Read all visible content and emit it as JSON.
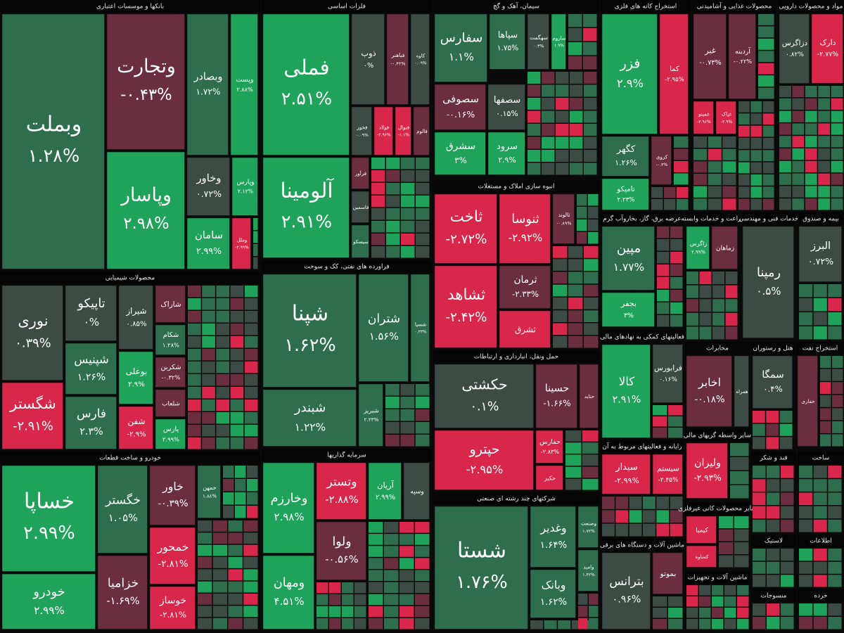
{
  "sectors": [
    {
      "title": "بانکها و موسسات اعتباری",
      "tiles": [
        {
          "name": "وبملت",
          "change": "۱.۲۸%",
          "color": "#2e6e4e"
        },
        {
          "name": "وتجارت",
          "change": "-۰.۴۳%",
          "color": "#6a2e3e"
        },
        {
          "name": "وپاسار",
          "change": "۲.۹۸%",
          "color": "#1fa35a"
        },
        {
          "name": "وبصادر",
          "change": "۱.۷۲%",
          "color": "#2e6e4e"
        },
        {
          "name": "وپست",
          "change": "۲.۸۸%",
          "color": "#1fa35a"
        },
        {
          "name": "وخاور",
          "change": "۰.۷۲%",
          "color": "#3d4b45"
        },
        {
          "name": "وپارس",
          "change": "۲.۱۲%",
          "color": "#1fa35a"
        },
        {
          "name": "سامان",
          "change": "۲.۹۹%",
          "color": "#1fa35a"
        },
        {
          "name": "وملل",
          "change": "-۲.۹۹%",
          "color": "#d9274b"
        }
      ]
    },
    {
      "title": "فلزات اساسی",
      "tiles": [
        {
          "name": "فملی",
          "change": "۲.۵۱%",
          "color": "#1fa35a"
        },
        {
          "name": "آلومینا",
          "change": "۲.۹۱%",
          "color": "#1fa35a"
        },
        {
          "name": "ذوب",
          "change": "۰%",
          "color": "#3d4b45"
        },
        {
          "name": "فباهنر",
          "change": "-۰.۴۲%",
          "color": "#6a2e3e"
        },
        {
          "name": "کاوه",
          "change": "۰.۰۹%",
          "color": "#3d4b45"
        },
        {
          "name": "فخوز",
          "change": "۰.۰۹%",
          "color": "#3d4b45"
        },
        {
          "name": "فولاد",
          "change": "-۲.۹۶%",
          "color": "#d9274b"
        },
        {
          "name": "فنوال",
          "change": "-۱.۱%",
          "color": "#d9274b"
        },
        {
          "name": "فالوم",
          "color": "#6a2e3e"
        },
        {
          "name": "فرآور",
          "color": "#6a2e3e"
        },
        {
          "name": "فاسمین",
          "color": "#3d4b45"
        },
        {
          "name": "سیسکو",
          "color": "#2e6e4e"
        }
      ]
    },
    {
      "title": "سیمان، آهک و گچ",
      "tiles": [
        {
          "name": "سفارس",
          "change": "۱.۱%",
          "color": "#2e6e4e"
        },
        {
          "name": "سپاها",
          "change": "۱.۷۵%",
          "color": "#2e6e4e"
        },
        {
          "name": "سهگمت",
          "change": "۰.۳%",
          "color": "#3d4b45"
        },
        {
          "name": "ساروم",
          "change": "۱.۹%",
          "color": "#1fa35a"
        },
        {
          "name": "سصوفی",
          "change": "-۰.۱۶%",
          "color": "#6a2e3e"
        },
        {
          "name": "سصفها",
          "change": "۰.۱۵%",
          "color": "#3d4b45"
        },
        {
          "name": "سشرق",
          "change": "۳%",
          "color": "#1fa35a"
        },
        {
          "name": "سرود",
          "change": "۲.۹%",
          "color": "#1fa35a"
        }
      ]
    },
    {
      "title": "استخراج کانه های فلزی",
      "tiles": [
        {
          "name": "فزر",
          "change": "۲.۹%",
          "color": "#1fa35a"
        },
        {
          "name": "کما",
          "change": "-۲.۹۵%",
          "color": "#d9274b"
        },
        {
          "name": "کگهر",
          "change": "۱.۲۶%",
          "color": "#2e6e4e"
        },
        {
          "name": "تامیکو",
          "change": "۲.۲۳%",
          "color": "#1fa35a"
        },
        {
          "name": "کروی",
          "change": "-۰.۳%",
          "color": "#6a2e3e"
        }
      ]
    },
    {
      "title": "محصولات غذایی و آشامیدنی",
      "tiles": [
        {
          "name": "غبر",
          "change": "-۰.۷۳%",
          "color": "#6a2e3e"
        },
        {
          "name": "آردینه",
          "change": "-۰.۲۲%",
          "color": "#6a2e3e"
        },
        {
          "name": "غمینو",
          "change": "-۲.۹۶%",
          "color": "#d9274b"
        },
        {
          "name": "غپاک",
          "change": "-۲.۹%",
          "color": "#d9274b"
        }
      ]
    },
    {
      "title": "مواد و محصولات دارویی",
      "tiles": [
        {
          "name": "دزاگرس",
          "change": "۰.۸۲%",
          "color": "#3d4b45"
        },
        {
          "name": "دارک",
          "change": "-۲.۷۷%",
          "color": "#d9274b"
        }
      ]
    },
    {
      "title": "انبوه سازی املاک و مستغلات",
      "tiles": [
        {
          "name": "ثاخت",
          "change": "-۲.۷۲%",
          "color": "#d9274b"
        },
        {
          "name": "ثنوسا",
          "change": "-۲.۹۲%",
          "color": "#d9274b"
        },
        {
          "name": "ثشاهد",
          "change": "-۲.۴۲%",
          "color": "#d9274b"
        },
        {
          "name": "ثرمان",
          "change": "-۲.۳۳%",
          "color": "#6a2e3e"
        },
        {
          "name": "ثشرق",
          "color": "#d9274b"
        },
        {
          "name": "ثالوند",
          "change": "-۰.۸۹%",
          "color": "#6a2e3e"
        }
      ]
    },
    {
      "title": "محصولات شیمیایی",
      "tiles": [
        {
          "name": "نوری",
          "change": "۰.۳۹%",
          "color": "#3d4b45"
        },
        {
          "name": "شگستر",
          "change": "-۲.۹۱%",
          "color": "#d9274b"
        },
        {
          "name": "تاپیکو",
          "change": "۰%",
          "color": "#3d4b45"
        },
        {
          "name": "شپنیس",
          "change": "۱.۲۶%",
          "color": "#2e6e4e"
        },
        {
          "name": "فارس",
          "change": "۲.۳%",
          "color": "#2e6e4e"
        },
        {
          "name": "شیراز",
          "change": "۰.۸۵%",
          "color": "#3d4b45"
        },
        {
          "name": "بوعلی",
          "change": "۲.۹%",
          "color": "#1fa35a"
        },
        {
          "name": "شفن",
          "change": "-۲.۹%",
          "color": "#d9274b"
        },
        {
          "name": "شاراک",
          "color": "#6a2e3e"
        },
        {
          "name": "شکام",
          "change": "۱.۲۸%",
          "color": "#2e6e4e"
        },
        {
          "name": "شکربن",
          "change": "-۰.۳۲%",
          "color": "#6a2e3e"
        },
        {
          "name": "شلعاب",
          "color": "#6a2e3e"
        },
        {
          "name": "پارس",
          "change": "۲.۹۹%",
          "color": "#1fa35a"
        }
      ]
    },
    {
      "title": "فراورده های نفتی، کک و سوخت",
      "tiles": [
        {
          "name": "شپنا",
          "change": "۱.۶۲%",
          "color": "#2e6e4e"
        },
        {
          "name": "شتران",
          "change": "۱.۵۶%",
          "color": "#2e6e4e"
        },
        {
          "name": "شبندر",
          "change": "۱.۲۲%",
          "color": "#2e6e4e"
        },
        {
          "name": "شبریز",
          "change": "۲.۲۳%",
          "color": "#2e6e4e"
        },
        {
          "name": "شسپا",
          "change": "۰.۳۳%",
          "color": "#2e6e4e"
        }
      ]
    },
    {
      "title": "حمل ونقل، انبارداری و ارتباطات",
      "tiles": [
        {
          "name": "حکشتی",
          "change": "۰.۱%",
          "color": "#3d4b45"
        },
        {
          "name": "حسینا",
          "change": "-۱.۶۶%",
          "color": "#6a2e3e"
        },
        {
          "name": "حپترو",
          "change": "-۲.۹۵%",
          "color": "#d9274b"
        },
        {
          "name": "حفارس",
          "change": "-۲.۸۳%",
          "color": "#d9274b"
        },
        {
          "name": "حکیر",
          "color": "#d9274b"
        },
        {
          "name": "حتاید",
          "color": "#6a2e3e"
        }
      ]
    },
    {
      "title": "سرمایه گذاریها",
      "tiles": [
        {
          "name": "وخارزم",
          "change": "۲.۹۸%",
          "color": "#1fa35a"
        },
        {
          "name": "وتستر",
          "change": "-۲.۸۸%",
          "color": "#d9274b"
        },
        {
          "name": "آریان",
          "change": "۲.۹۹%",
          "color": "#1fa35a"
        },
        {
          "name": "ومهان",
          "change": "۴.۵۱%",
          "color": "#1fa35a"
        },
        {
          "name": "ولوا",
          "change": "-۰.۵۶%",
          "color": "#6a2e3e"
        },
        {
          "name": "وسپه",
          "color": "#3d4b45"
        }
      ]
    },
    {
      "title": "خودرو و ساخت قطعات",
      "tiles": [
        {
          "name": "خساپا",
          "change": "۲.۹۹%",
          "color": "#1fa35a"
        },
        {
          "name": "خودرو",
          "change": "۲.۹۹%",
          "color": "#1fa35a"
        },
        {
          "name": "خگستر",
          "change": "۱.۰۵%",
          "color": "#2e6e4e"
        },
        {
          "name": "خزامیا",
          "change": "-۱.۶۹%",
          "color": "#6a2e3e"
        },
        {
          "name": "خاور",
          "change": "-۰.۳۹%",
          "color": "#6a2e3e"
        },
        {
          "name": "خمحور",
          "change": "-۲.۸۱%",
          "color": "#d9274b"
        },
        {
          "name": "خوساز",
          "change": "-۲.۸۱%",
          "color": "#d9274b"
        },
        {
          "name": "خمهن",
          "change": "۱.۸۸%",
          "color": "#2e6e4e"
        }
      ]
    },
    {
      "title": "شرکتهای چند رشته ای صنعتی",
      "tiles": [
        {
          "name": "شستا",
          "change": "۱.۷۶%",
          "color": "#2e6e4e"
        },
        {
          "name": "وغدیر",
          "change": "۱.۶۴%",
          "color": "#2e6e4e"
        },
        {
          "name": "وبانک",
          "change": "۱.۶۲%",
          "color": "#2e6e4e"
        },
        {
          "name": "وصنعت",
          "change": "۱.۷۲%",
          "color": "#2e6e4e"
        },
        {
          "name": "وامید",
          "change": "۱.۴۲%",
          "color": "#2e6e4e"
        }
      ]
    },
    {
      "title": "عرضه برق، گاز، بخاروآب گرم",
      "tiles": [
        {
          "name": "مپین",
          "change": "۱.۷۷%",
          "color": "#2e6e4e"
        },
        {
          "name": "بجفر",
          "change": "۳%",
          "color": "#1fa35a"
        }
      ]
    },
    {
      "title": "زراعت و خدمات وابسته",
      "tiles": [
        {
          "name": "زاگرس",
          "change": "۲.۹۹%",
          "color": "#1fa35a"
        },
        {
          "name": "زماهان",
          "color": "#6a2e3e"
        }
      ]
    },
    {
      "title": "خدمات فنی و مهندسی",
      "tiles": [
        {
          "name": "رمپنا",
          "change": "۰.۵%",
          "color": "#3d4b45"
        }
      ]
    },
    {
      "title": "بیمه و صندوق",
      "tiles": [
        {
          "name": "البرز",
          "change": "۰.۷۲%",
          "color": "#3d4b45"
        }
      ]
    },
    {
      "title": "فعالیتهای کمکی به نهادهای مالی",
      "tiles": [
        {
          "name": "کالا",
          "change": "۲.۹۱%",
          "color": "#1fa35a"
        },
        {
          "name": "فرابورس",
          "change": "۰.۱۶%",
          "color": "#3d4b45"
        }
      ]
    },
    {
      "title": "مخابرات",
      "tiles": [
        {
          "name": "اخابر",
          "change": "-۰.۱۸%",
          "color": "#6a2e3e"
        },
        {
          "name": "همراه",
          "color": "#3d4b45"
        }
      ]
    },
    {
      "title": "هتل و رستوران",
      "tiles": [
        {
          "name": "سمگا",
          "change": "۰.۴%",
          "color": "#3d4b45"
        }
      ]
    },
    {
      "title": "استخراج نفت",
      "tiles": [
        {
          "name": "حفاری",
          "color": "#6a2e3e"
        }
      ]
    },
    {
      "title": "رایانه و فعالیتهای مربوط به آن",
      "tiles": [
        {
          "name": "سیدار",
          "change": "-۲.۹۹%",
          "color": "#d9274b"
        },
        {
          "name": "سیستم",
          "change": "-۲.۴۵%",
          "color": "#d9274b"
        }
      ]
    },
    {
      "title": "سایر واسطه گریهای مالی",
      "tiles": [
        {
          "name": "ولیران",
          "change": "-۲.۹۳%",
          "color": "#d9274b"
        }
      ]
    },
    {
      "title": "سایر محصولات کانی غیرفلزی",
      "tiles": [
        {
          "name": "کیمیا",
          "color": "#d9274b"
        },
        {
          "name": "کساوه",
          "color": "#d9274b"
        }
      ]
    },
    {
      "title": "ماشین آلات و دستگاه های برقی",
      "tiles": [
        {
          "name": "بترانس",
          "change": "۰.۹۶%",
          "color": "#3d4b45"
        },
        {
          "name": "بموتو",
          "color": "#6a2e3e"
        }
      ]
    },
    {
      "title": "ماشین آلات و تجهیزات",
      "tiles": []
    },
    {
      "title": "قند و شکر",
      "tiles": []
    },
    {
      "title": "ساخت",
      "tiles": []
    },
    {
      "title": "لاستیک",
      "tiles": []
    },
    {
      "title": "اطلاعات",
      "tiles": []
    },
    {
      "title": "منسوجات",
      "tiles": []
    },
    {
      "title": "خرده",
      "tiles": []
    }
  ]
}
